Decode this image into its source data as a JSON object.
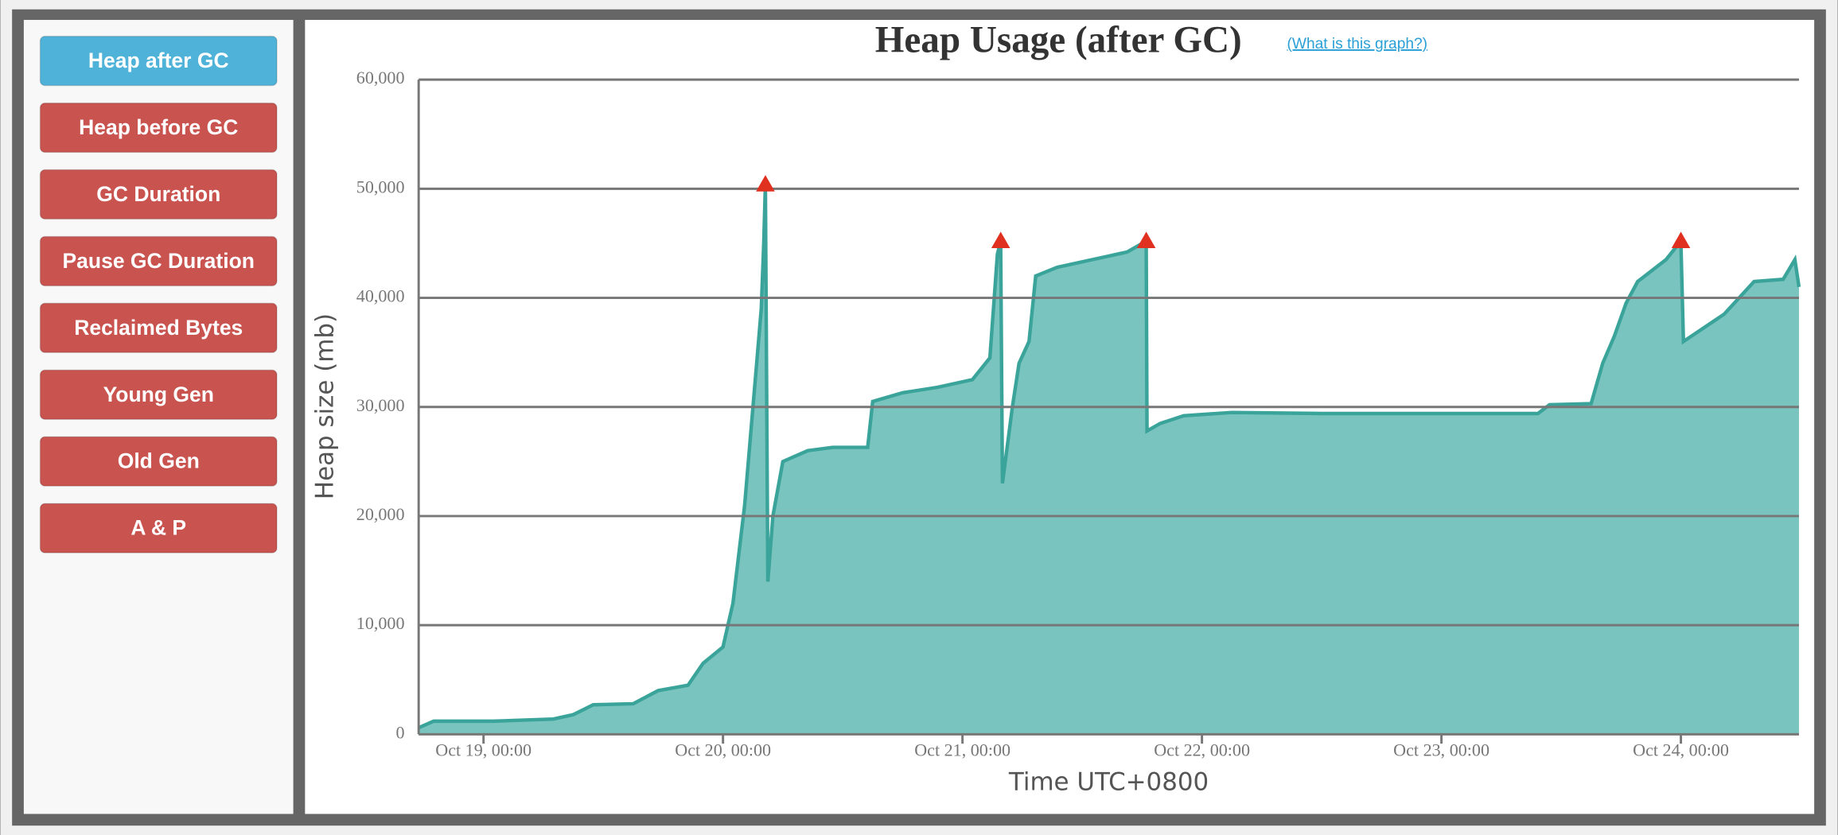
{
  "nav": {
    "items": [
      "Heap after GC",
      "Heap before GC",
      "GC Duration",
      "Pause GC Duration",
      "Reclaimed Bytes",
      "Young Gen",
      "Old Gen",
      "A & P"
    ],
    "active_index": 0,
    "active_color": "#4fb3d9",
    "color": "#c9534f"
  },
  "chart_data": {
    "type": "area",
    "title": "Heap Usage (after GC)",
    "help_link": "(What is this graph?)",
    "x_label": "Time UTC+0800",
    "y_label": "Heap size (mb)",
    "xlim": [
      "Oct 18, 17:30",
      "Oct 24, 11:50"
    ],
    "xticks": [
      "Oct 19, 00:00",
      "Oct 20, 00:00",
      "Oct 21, 00:00",
      "Oct 22, 00:00",
      "Oct 23, 00:00",
      "Oct 24, 00:00"
    ],
    "ylim": [
      0,
      60000
    ],
    "yticks": [
      0,
      {
        "value": 10000,
        "label": "10,000"
      },
      {
        "value": 20000,
        "label": "20,000"
      },
      {
        "value": 30000,
        "label": "30,000"
      },
      {
        "value": 40000,
        "label": "40,000"
      },
      {
        "value": 50000,
        "label": "50,000"
      },
      {
        "value": 60000,
        "label": "60,000"
      }
    ],
    "grid": true,
    "series": [
      {
        "name": "Heap after GC",
        "color": "#3aa39a",
        "fill": "#7ac4bf",
        "x": [
          "Oct 18, 17:30",
          "Oct 18, 19:00",
          "Oct 19, 01:00",
          "Oct 19, 07:00",
          "Oct 19, 09:00",
          "Oct 19, 11:00",
          "Oct 19, 15:00",
          "Oct 19, 17:30",
          "Oct 19, 20:30",
          "Oct 19, 22:00",
          "Oct 20, 00:00",
          "Oct 20, 01:00",
          "Oct 20, 02:10",
          "Oct 20, 03:00",
          "Oct 20, 03:50",
          "Oct 20, 04:05",
          "Oct 20, 04:15",
          "Oct 20, 04:30",
          "Oct 20, 05:00",
          "Oct 20, 06:00",
          "Oct 20, 08:30",
          "Oct 20, 11:00",
          "Oct 20, 14:30",
          "Oct 20, 15:00",
          "Oct 20, 18:00",
          "Oct 20, 21:30",
          "Oct 21, 01:00",
          "Oct 21, 02:45",
          "Oct 21, 03:30",
          "Oct 21, 03:50",
          "Oct 21, 04:00",
          "Oct 21, 05:00",
          "Oct 21, 05:40",
          "Oct 21, 06:40",
          "Oct 21, 07:20",
          "Oct 21, 09:30",
          "Oct 21, 13:00",
          "Oct 21, 16:30",
          "Oct 21, 18:25",
          "Oct 21, 18:30",
          "Oct 21, 19:50",
          "Oct 21, 22:10",
          "Oct 22, 03:00",
          "Oct 22, 12:00",
          "Oct 23, 09:40",
          "Oct 23, 10:50",
          "Oct 23, 15:00",
          "Oct 23, 16:10",
          "Oct 23, 17:20",
          "Oct 23, 18:30",
          "Oct 23, 19:40",
          "Oct 23, 22:30",
          "Oct 24, 00:00",
          "Oct 24, 00:15",
          "Oct 24, 04:20",
          "Oct 24, 07:20",
          "Oct 24, 10:15",
          "Oct 24, 11:25",
          "Oct 24, 11:50"
        ],
        "values": [
          600,
          1200,
          1200,
          1400,
          1800,
          2700,
          2800,
          4000,
          4500,
          6500,
          8000,
          12000,
          21000,
          30000,
          39000,
          45000,
          50400,
          14000,
          20000,
          25000,
          26000,
          26300,
          26300,
          30500,
          31300,
          31800,
          32500,
          34500,
          44000,
          45200,
          23000,
          30000,
          34000,
          36000,
          42000,
          42800,
          43500,
          44200,
          45200,
          27800,
          28500,
          29200,
          29500,
          29400,
          29400,
          30200,
          30300,
          34000,
          36500,
          39500,
          41500,
          43500,
          45200,
          36000,
          38500,
          41500,
          41700,
          43500,
          41000
        ]
      }
    ],
    "peak_markers": {
      "color": "#e03020",
      "x": [
        "Oct 20, 04:15",
        "Oct 21, 03:50",
        "Oct 21, 18:25",
        "Oct 24, 00:00"
      ],
      "values": [
        50400,
        45200,
        45200,
        45200
      ]
    }
  }
}
